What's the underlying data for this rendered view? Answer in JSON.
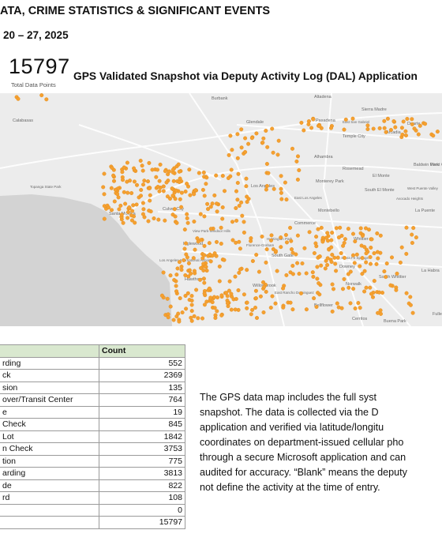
{
  "header": {
    "line1": "ATA, CRIME STATISTICS & SIGNIFICANT EVENTS",
    "line2": "20 – 27, 2025"
  },
  "summary": {
    "total_value": "15797",
    "total_label": "Total Data Points",
    "map_title": "GPS Validated Snapshot via Deputy Activity Log (DAL) Application"
  },
  "map": {
    "labels": [
      "Burbank",
      "Altadena",
      "Sierra Madre",
      "Calabasas",
      "Glendale",
      "Pasadena",
      "Arcadia",
      "Duarte",
      "East San Gabriel",
      "Temple City",
      "Alhambra",
      "Rosemead",
      "El Monte",
      "Baldwin Park",
      "West Covina",
      "Topanga State Park",
      "Los Angeles",
      "Monterey Park",
      "South El Monte",
      "West Puente Valley",
      "Avocado Heights",
      "La Puente",
      "Santa Monica",
      "Culver City",
      "East Los Angeles",
      "Montebello",
      "Commerce",
      "View Park-Windsor Hills",
      "Huntington Park",
      "Inglewood",
      "Florence-Graham",
      "Lennox",
      "Los Angeles International Airport",
      "South Gate",
      "Whittier",
      "Santa Fe Springs",
      "Downey",
      "Hawthorne",
      "South Whittier",
      "La Habra",
      "Willowbrook",
      "Norwalk",
      "East Rancho Dominguez",
      "Bellflower",
      "Cerritos",
      "Buena Park",
      "Fulle"
    ],
    "dot_color": "#f5a030",
    "water_color": "#d3d3d3",
    "land_color": "#ececec"
  },
  "table": {
    "headers": [
      "",
      "Count"
    ],
    "rows": [
      {
        "label": "rding",
        "count": "552"
      },
      {
        "label": "ck",
        "count": "2369"
      },
      {
        "label": "sion",
        "count": "135"
      },
      {
        "label": "over/Transit Center",
        "count": "764"
      },
      {
        "label": "e",
        "count": "19"
      },
      {
        "label": "Check",
        "count": "845"
      },
      {
        "label": "Lot",
        "count": "1842"
      },
      {
        "label": "n Check",
        "count": "3753"
      },
      {
        "label": "tion",
        "count": "775"
      },
      {
        "label": "arding",
        "count": "3813"
      },
      {
        "label": "de",
        "count": "822"
      },
      {
        "label": "rd",
        "count": "108"
      },
      {
        "label": "",
        "count": "0"
      },
      {
        "label": "",
        "count": "15797"
      }
    ]
  },
  "note": {
    "lines": [
      "The GPS data map includes the full syst",
      "snapshot. The data is collected via the D",
      "application and verified via latitude/longitu",
      "coordinates on department-issued cellular pho",
      "through a secure Microsoft application and can",
      "audited for accuracy. “Blank” means the deputy",
      "not define the activity at the time of entry."
    ]
  }
}
